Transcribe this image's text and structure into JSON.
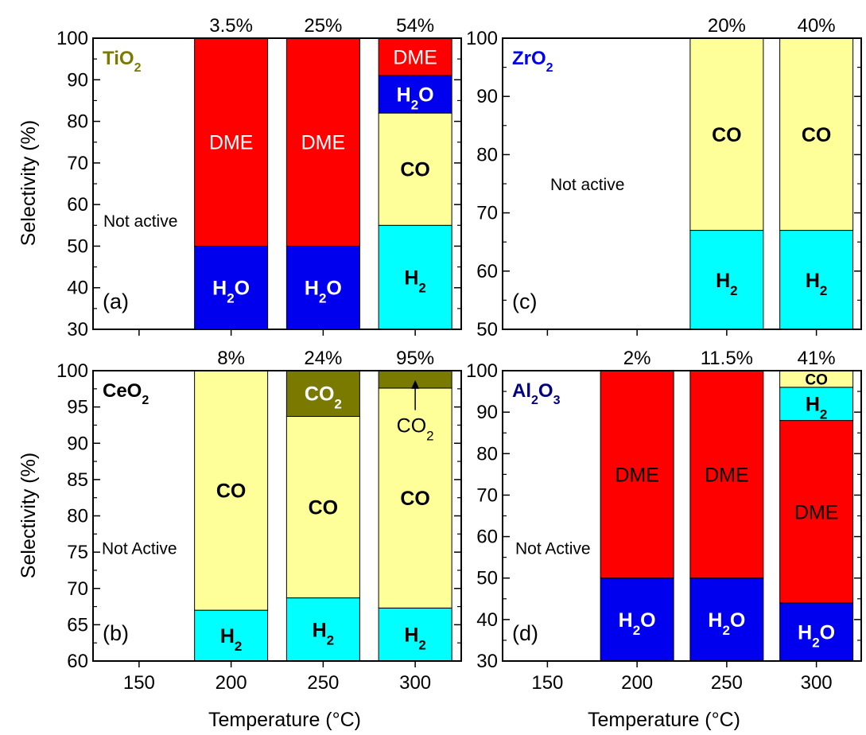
{
  "figure": {
    "ylabel": "Selectivity (%)",
    "xlabel": "Temperature (°C)"
  },
  "colors": {
    "red": "#ff0000",
    "blue": "#0000ee",
    "yellow": "#ffff99",
    "cyan": "#00ffff",
    "olive": "#7a7a00",
    "navy": "#00007f"
  },
  "chart_data": [
    {
      "panel": "(a)",
      "title": "TiO2",
      "title_parts": [
        {
          "t": "TiO"
        },
        {
          "t": "2",
          "sub": true
        }
      ],
      "title_color": "#7a7a00",
      "type": "bar",
      "stacked": true,
      "categories": [
        "150",
        "200",
        "250",
        "300"
      ],
      "ylim": [
        30,
        100
      ],
      "yticks": [
        30,
        40,
        50,
        60,
        70,
        80,
        90,
        100
      ],
      "conversions": [
        "",
        "3.5%",
        "25%",
        "54%"
      ],
      "not_active_label": "Not active",
      "bars": [
        {
          "x": "200",
          "segments": [
            {
              "name": "H2O",
              "from": 30,
              "to": 50,
              "color": "#0000ee",
              "label_parts": [
                {
                  "t": "H"
                },
                {
                  "t": "2",
                  "sub": true
                },
                {
                  "t": "O"
                }
              ],
              "label_color": "#ffffff",
              "bold": true
            },
            {
              "name": "DME",
              "from": 50,
              "to": 100,
              "color": "#ff0000",
              "label_parts": [
                {
                  "t": "DME"
                }
              ],
              "label_color": "#ffffff",
              "bold": false
            }
          ]
        },
        {
          "x": "250",
          "segments": [
            {
              "name": "H2O",
              "from": 30,
              "to": 50,
              "color": "#0000ee",
              "label_parts": [
                {
                  "t": "H"
                },
                {
                  "t": "2",
                  "sub": true
                },
                {
                  "t": "O"
                }
              ],
              "label_color": "#ffffff",
              "bold": true
            },
            {
              "name": "DME",
              "from": 50,
              "to": 100,
              "color": "#ff0000",
              "label_parts": [
                {
                  "t": "DME"
                }
              ],
              "label_color": "#ffffff",
              "bold": false
            }
          ]
        },
        {
          "x": "300",
          "segments": [
            {
              "name": "H2",
              "from": 30,
              "to": 55,
              "color": "#00ffff",
              "label_parts": [
                {
                  "t": "H"
                },
                {
                  "t": "2",
                  "sub": true
                }
              ],
              "label_color": "#000000",
              "bold": true
            },
            {
              "name": "CO",
              "from": 55,
              "to": 82,
              "color": "#ffff99",
              "label_parts": [
                {
                  "t": "CO"
                }
              ],
              "label_color": "#000000",
              "bold": true
            },
            {
              "name": "H2O",
              "from": 82,
              "to": 91,
              "color": "#0000ee",
              "label_parts": [
                {
                  "t": "H"
                },
                {
                  "t": "2",
                  "sub": true
                },
                {
                  "t": "O"
                }
              ],
              "label_color": "#ffffff",
              "bold": true
            },
            {
              "name": "DME",
              "from": 91,
              "to": 100,
              "color": "#ff0000",
              "label_parts": [
                {
                  "t": "DME"
                }
              ],
              "label_color": "#ffffff",
              "bold": false
            }
          ]
        }
      ]
    },
    {
      "panel": "(b)",
      "title": "CeO2",
      "title_parts": [
        {
          "t": "CeO"
        },
        {
          "t": "2",
          "sub": true
        }
      ],
      "title_color": "#000000",
      "type": "bar",
      "stacked": true,
      "categories": [
        "150",
        "200",
        "250",
        "300"
      ],
      "ylim": [
        60,
        100
      ],
      "yticks": [
        60,
        65,
        70,
        75,
        80,
        85,
        90,
        95,
        100
      ],
      "conversions": [
        "",
        "8%",
        "24%",
        "95%"
      ],
      "not_active_label": "Not Active",
      "bars": [
        {
          "x": "200",
          "segments": [
            {
              "name": "H2",
              "from": 60,
              "to": 67,
              "color": "#00ffff",
              "label_parts": [
                {
                  "t": "H"
                },
                {
                  "t": "2",
                  "sub": true
                }
              ],
              "label_color": "#000000",
              "bold": true
            },
            {
              "name": "CO",
              "from": 67,
              "to": 100,
              "color": "#ffff99",
              "label_parts": [
                {
                  "t": "CO"
                }
              ],
              "label_color": "#000000",
              "bold": true
            }
          ]
        },
        {
          "x": "250",
          "segments": [
            {
              "name": "H2",
              "from": 60,
              "to": 68.7,
              "color": "#00ffff",
              "label_parts": [
                {
                  "t": "H"
                },
                {
                  "t": "2",
                  "sub": true
                }
              ],
              "label_color": "#000000",
              "bold": true
            },
            {
              "name": "CO",
              "from": 68.7,
              "to": 93.7,
              "color": "#ffff99",
              "label_parts": [
                {
                  "t": "CO"
                }
              ],
              "label_color": "#000000",
              "bold": true
            },
            {
              "name": "CO2",
              "from": 93.7,
              "to": 100,
              "color": "#7a7a00",
              "label_parts": [
                {
                  "t": "CO"
                },
                {
                  "t": "2",
                  "sub": true
                }
              ],
              "label_color": "#ffffff",
              "bold": true
            }
          ]
        },
        {
          "x": "300",
          "segments": [
            {
              "name": "H2",
              "from": 60,
              "to": 67.3,
              "color": "#00ffff",
              "label_parts": [
                {
                  "t": "H"
                },
                {
                  "t": "2",
                  "sub": true
                }
              ],
              "label_color": "#000000",
              "bold": true
            },
            {
              "name": "CO",
              "from": 67.3,
              "to": 97.6,
              "color": "#ffff99",
              "label_parts": [
                {
                  "t": "CO"
                }
              ],
              "label_color": "#000000",
              "bold": true
            },
            {
              "name": "CO2",
              "from": 97.6,
              "to": 100,
              "color": "#7a7a00",
              "label_parts": [],
              "label_color": "#ffffff",
              "bold": true
            }
          ]
        }
      ],
      "annotations": [
        {
          "bar": "300",
          "label_parts": [
            {
              "t": "CO"
            },
            {
              "t": "2",
              "sub": true
            }
          ],
          "arrow_to": 98.6,
          "label_at": 91.5
        }
      ]
    },
    {
      "panel": "(c)",
      "title": "ZrO2",
      "title_parts": [
        {
          "t": "ZrO"
        },
        {
          "t": "2",
          "sub": true
        }
      ],
      "title_color": "#0000ee",
      "type": "bar",
      "stacked": true,
      "categories": [
        "150",
        "200",
        "250",
        "300"
      ],
      "ylim": [
        50,
        100
      ],
      "yticks": [
        50,
        60,
        70,
        80,
        90,
        100
      ],
      "conversions": [
        "",
        "",
        "20%",
        "40%"
      ],
      "not_active_label": "Not active",
      "bars": [
        {
          "x": "250",
          "segments": [
            {
              "name": "H2",
              "from": 50,
              "to": 67,
              "color": "#00ffff",
              "label_parts": [
                {
                  "t": "H"
                },
                {
                  "t": "2",
                  "sub": true
                }
              ],
              "label_color": "#000000",
              "bold": true
            },
            {
              "name": "CO",
              "from": 67,
              "to": 100,
              "color": "#ffff99",
              "label_parts": [
                {
                  "t": "CO"
                }
              ],
              "label_color": "#000000",
              "bold": true
            }
          ]
        },
        {
          "x": "300",
          "segments": [
            {
              "name": "H2",
              "from": 50,
              "to": 67,
              "color": "#00ffff",
              "label_parts": [
                {
                  "t": "H"
                },
                {
                  "t": "2",
                  "sub": true
                }
              ],
              "label_color": "#000000",
              "bold": true
            },
            {
              "name": "CO",
              "from": 67,
              "to": 100,
              "color": "#ffff99",
              "label_parts": [
                {
                  "t": "CO"
                }
              ],
              "label_color": "#000000",
              "bold": true
            }
          ]
        }
      ]
    },
    {
      "panel": "(d)",
      "title": "Al2O3",
      "title_parts": [
        {
          "t": "Al"
        },
        {
          "t": "2",
          "sub": true
        },
        {
          "t": "O"
        },
        {
          "t": "3",
          "sub": true
        }
      ],
      "title_color": "#00007f",
      "type": "bar",
      "stacked": true,
      "categories": [
        "150",
        "200",
        "250",
        "300"
      ],
      "ylim": [
        30,
        100
      ],
      "yticks": [
        30,
        40,
        50,
        60,
        70,
        80,
        90,
        100
      ],
      "conversions": [
        "",
        "2%",
        "11.5%",
        "41%"
      ],
      "not_active_label": "Not Active",
      "bars": [
        {
          "x": "200",
          "segments": [
            {
              "name": "H2O",
              "from": 30,
              "to": 50,
              "color": "#0000ee",
              "label_parts": [
                {
                  "t": "H"
                },
                {
                  "t": "2",
                  "sub": true
                },
                {
                  "t": "O"
                }
              ],
              "label_color": "#ffffff",
              "bold": true
            },
            {
              "name": "DME",
              "from": 50,
              "to": 100,
              "color": "#ff0000",
              "label_parts": [
                {
                  "t": "DME"
                }
              ],
              "label_color": "#000000",
              "bold": false
            }
          ]
        },
        {
          "x": "250",
          "segments": [
            {
              "name": "H2O",
              "from": 30,
              "to": 50,
              "color": "#0000ee",
              "label_parts": [
                {
                  "t": "H"
                },
                {
                  "t": "2",
                  "sub": true
                },
                {
                  "t": "O"
                }
              ],
              "label_color": "#ffffff",
              "bold": true
            },
            {
              "name": "DME",
              "from": 50,
              "to": 100,
              "color": "#ff0000",
              "label_parts": [
                {
                  "t": "DME"
                }
              ],
              "label_color": "#000000",
              "bold": false
            }
          ]
        },
        {
          "x": "300",
          "segments": [
            {
              "name": "H2O",
              "from": 30,
              "to": 44,
              "color": "#0000ee",
              "label_parts": [
                {
                  "t": "H"
                },
                {
                  "t": "2",
                  "sub": true
                },
                {
                  "t": "O"
                }
              ],
              "label_color": "#ffffff",
              "bold": true
            },
            {
              "name": "DME",
              "from": 44,
              "to": 88,
              "color": "#ff0000",
              "label_parts": [
                {
                  "t": "DME"
                }
              ],
              "label_color": "#000000",
              "bold": false
            },
            {
              "name": "H2",
              "from": 88,
              "to": 96,
              "color": "#00ffff",
              "label_parts": [
                {
                  "t": "H"
                },
                {
                  "t": "2",
                  "sub": true
                }
              ],
              "label_color": "#000000",
              "bold": true
            },
            {
              "name": "CO",
              "from": 96,
              "to": 100,
              "color": "#ffff99",
              "label_parts": [
                {
                  "t": "CO"
                }
              ],
              "label_color": "#000000",
              "bold": true
            }
          ]
        }
      ]
    }
  ]
}
